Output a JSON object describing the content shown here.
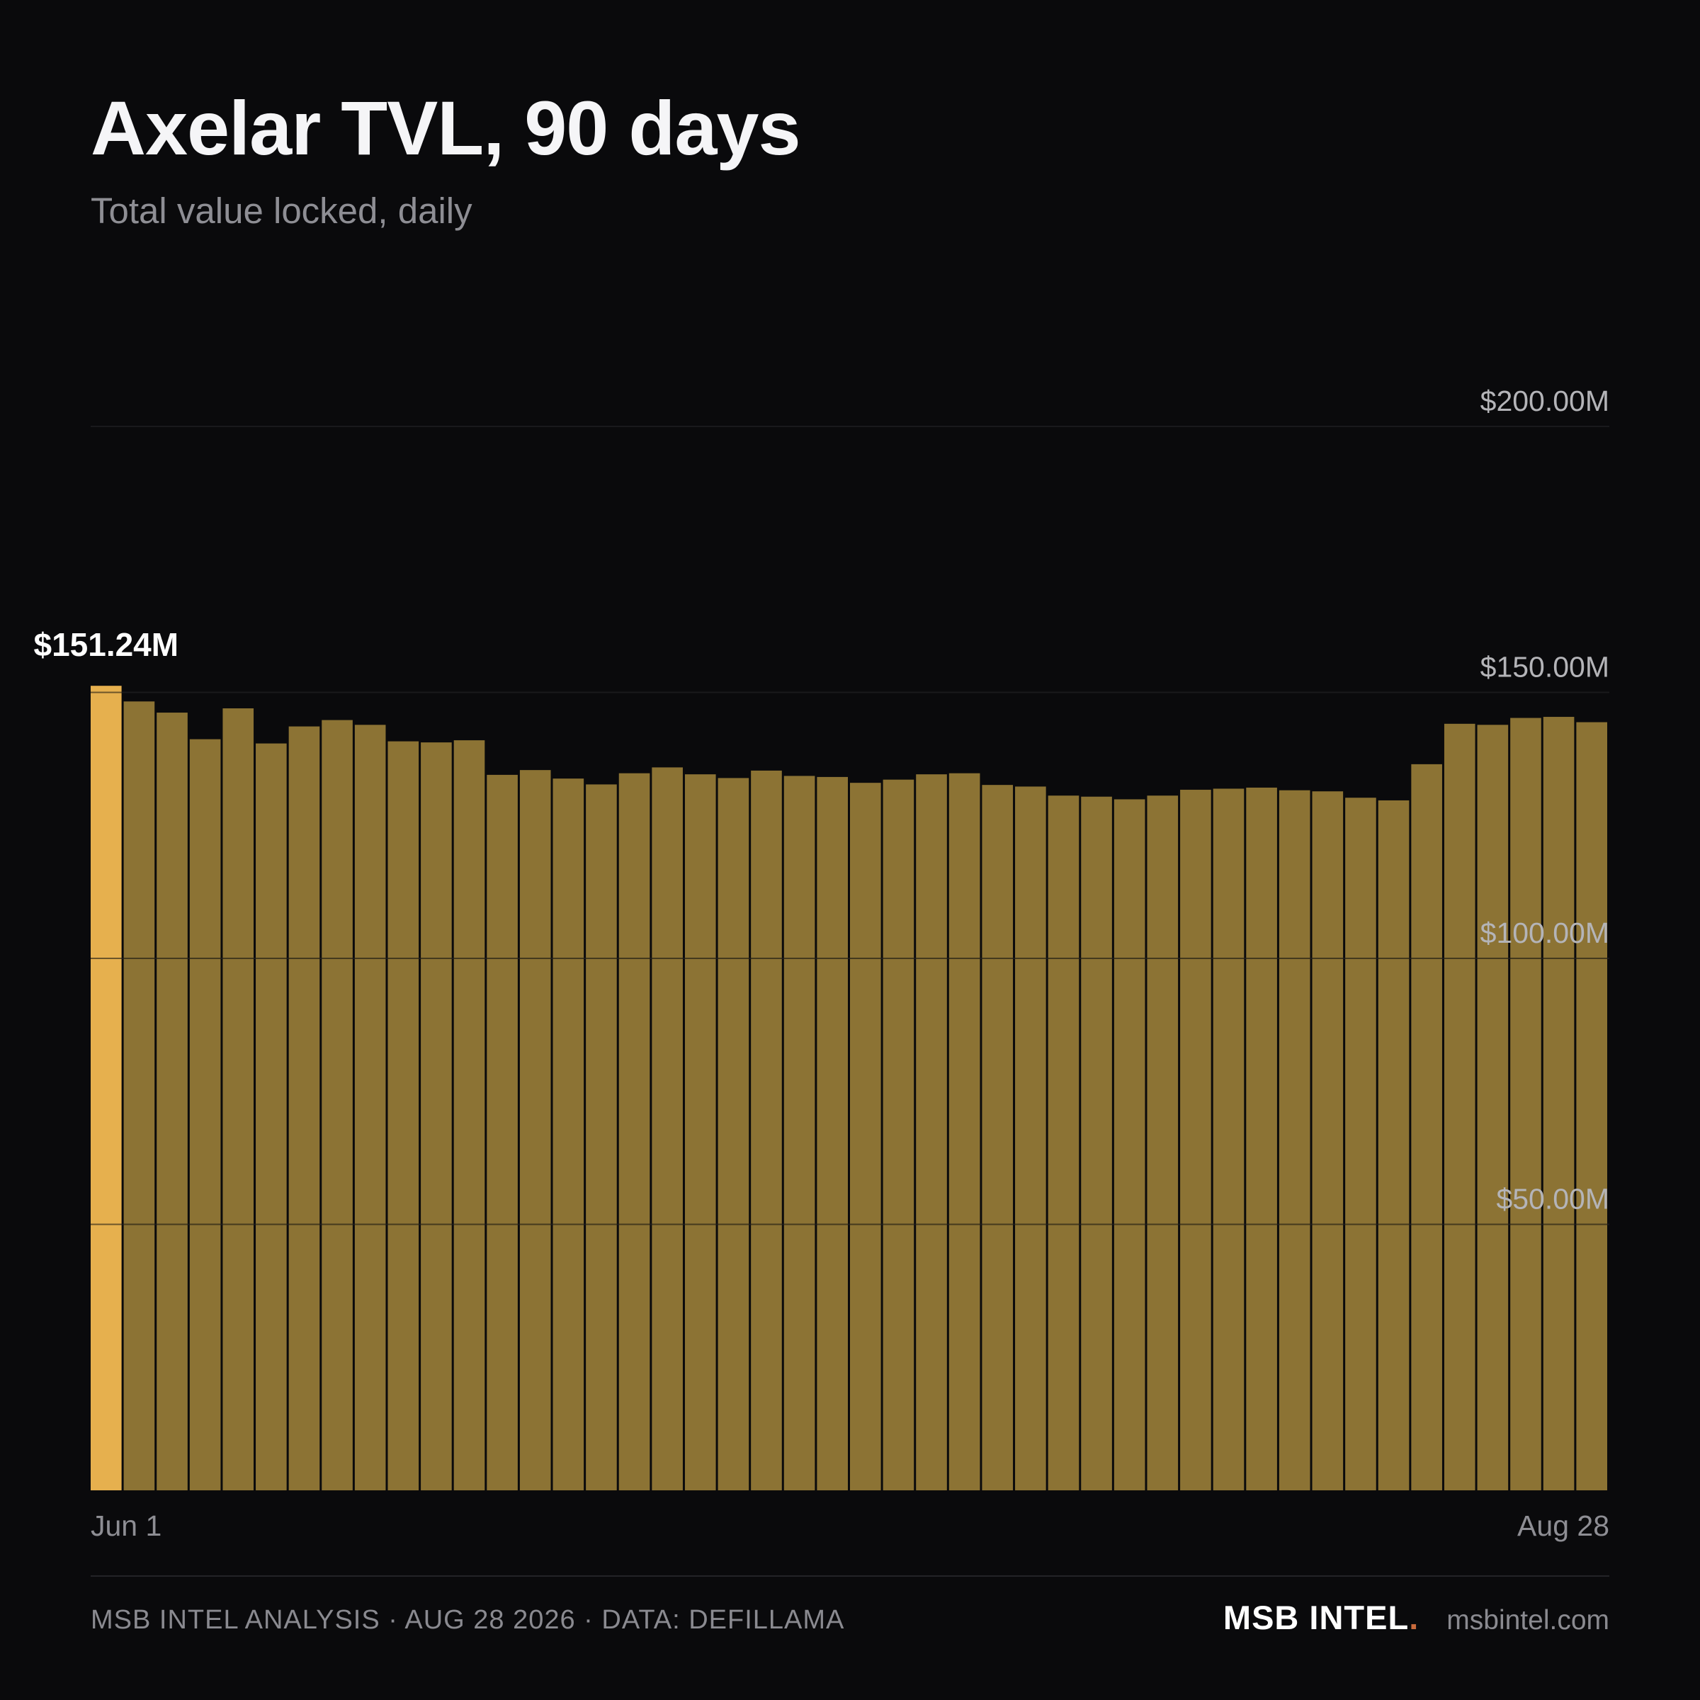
{
  "header": {
    "title": "Axelar TVL, 90 days",
    "subtitle": "Total value locked, daily"
  },
  "chart_data": {
    "type": "bar",
    "title": "Axelar TVL, 90 days",
    "subtitle": "Total value locked, daily",
    "unit": "$M",
    "ylim": [
      0,
      200
    ],
    "yticks": [
      50,
      100,
      150,
      200
    ],
    "ytick_labels": [
      "$50.00M",
      "$100.00M",
      "$150.00M",
      "$200.00M"
    ],
    "xtick_labels": [
      "Jun 1",
      "Aug 28"
    ],
    "grid": true,
    "highlight_index": 0,
    "highlight_label": "$151.24M",
    "values": [
      151.24,
      148.3,
      146.2,
      141.2,
      147.0,
      140.4,
      143.6,
      144.8,
      143.9,
      140.8,
      140.6,
      141.0,
      134.5,
      135.4,
      133.8,
      132.7,
      134.8,
      135.9,
      134.6,
      133.9,
      135.3,
      134.3,
      134.1,
      133.0,
      133.6,
      134.6,
      134.8,
      132.6,
      132.3,
      130.6,
      130.4,
      129.9,
      130.6,
      131.7,
      131.9,
      132.1,
      131.6,
      131.4,
      130.2,
      129.7,
      136.5,
      144.1,
      143.9,
      145.2,
      145.4,
      144.4
    ],
    "colors": {
      "bar": "#8c7334",
      "highlight_bar": "#e6b04e",
      "grid": "#2c2c30",
      "background": "#0a0a0c"
    }
  },
  "footer": {
    "source": "MSB INTEL ANALYSIS · AUG 28 2026 · DATA: DEFILLAMA",
    "brand": "MSB INTEL",
    "brand_dot": ".",
    "brand_dot_color": "#c96a3c",
    "site": "msbintel.com"
  }
}
